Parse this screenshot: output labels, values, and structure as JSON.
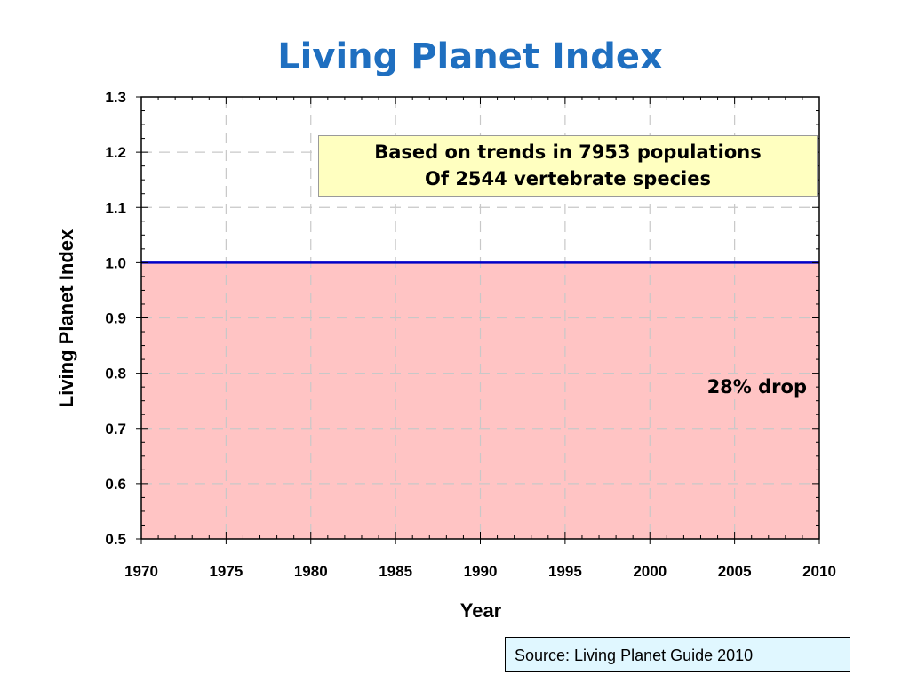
{
  "slide": {
    "title": "Living Planet Index"
  },
  "chart_data": {
    "type": "area",
    "xlabel": "Year",
    "ylabel": "Living Planet Index",
    "xlim": [
      1970,
      2010
    ],
    "ylim": [
      0.5,
      1.3
    ],
    "xticks": [
      "1970",
      "1975",
      "1980",
      "1985",
      "1990",
      "1995",
      "2000",
      "2005",
      "2010"
    ],
    "yticks": [
      "0.5",
      "0.6",
      "0.7",
      "0.8",
      "0.9",
      "1.0",
      "1.1",
      "1.2",
      "1.3"
    ],
    "grid": true,
    "fill_region": {
      "y_from": 0.5,
      "y_to": 1.0,
      "color": "#ffc4c4"
    },
    "reference_line": {
      "y": 1.0,
      "color": "#0000c8"
    },
    "annotations": {
      "box_line1": "Based on trends in 7953 populations",
      "box_line2": "Of 2544 vertebrate species",
      "drop": "28% drop"
    }
  },
  "source": "Source: Living Planet Guide 2010"
}
